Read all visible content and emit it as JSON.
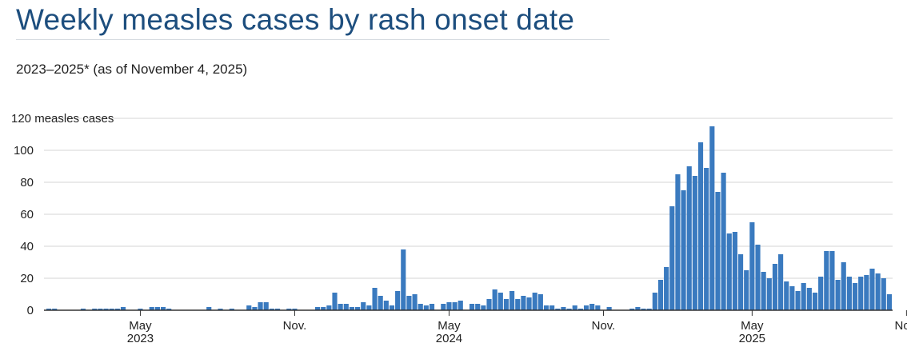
{
  "title": "Weekly measles cases by rash onset date",
  "subtitle": "2023–2025* (as of November 4, 2025)",
  "chart_data": {
    "type": "bar",
    "title": "Weekly measles cases by rash onset date",
    "subtitle": "2023–2025* (as of November 4, 2025)",
    "ylabel": "measles cases",
    "ylim": [
      0,
      120
    ],
    "yticks": [
      0,
      20,
      40,
      60,
      80,
      100,
      120
    ],
    "ytick_labels": [
      "0",
      "20",
      "40",
      "60",
      "80",
      "100",
      "120 measles cases"
    ],
    "xticks": [
      {
        "week": 16,
        "label": "May",
        "year": "2023"
      },
      {
        "week": 43,
        "label": "Nov.",
        "year": ""
      },
      {
        "week": 70,
        "label": "May",
        "year": "2024"
      },
      {
        "week": 97,
        "label": "Nov.",
        "year": ""
      },
      {
        "week": 123,
        "label": "May",
        "year": "2025"
      },
      {
        "week": 150,
        "label": "Nov.",
        "year": ""
      }
    ],
    "bar_color": "#3a7abf",
    "grid": true,
    "x": [
      "2023-W01",
      "2023-W02",
      "2023-W03",
      "2023-W04",
      "2023-W05",
      "2023-W06",
      "2023-W07",
      "2023-W08",
      "2023-W09",
      "2023-W10",
      "2023-W11",
      "2023-W12",
      "2023-W13",
      "2023-W14",
      "2023-W15",
      "2023-W16",
      "2023-W17",
      "2023-W18",
      "2023-W19",
      "2023-W20",
      "2023-W21",
      "2023-W22",
      "2023-W23",
      "2023-W24",
      "2023-W25",
      "2023-W26",
      "2023-W27",
      "2023-W28",
      "2023-W29",
      "2023-W30",
      "2023-W31",
      "2023-W32",
      "2023-W33",
      "2023-W34",
      "2023-W35",
      "2023-W36",
      "2023-W37",
      "2023-W38",
      "2023-W39",
      "2023-W40",
      "2023-W41",
      "2023-W42",
      "2023-W43",
      "2023-W44",
      "2023-W45",
      "2023-W46",
      "2023-W47",
      "2023-W48",
      "2023-W49",
      "2023-W50",
      "2023-W51",
      "2023-W52",
      "2024-W01",
      "2024-W02",
      "2024-W03",
      "2024-W04",
      "2024-W05",
      "2024-W06",
      "2024-W07",
      "2024-W08",
      "2024-W09",
      "2024-W10",
      "2024-W11",
      "2024-W12",
      "2024-W13",
      "2024-W14",
      "2024-W15",
      "2024-W16",
      "2024-W17",
      "2024-W18",
      "2024-W19",
      "2024-W20",
      "2024-W21",
      "2024-W22",
      "2024-W23",
      "2024-W24",
      "2024-W25",
      "2024-W26",
      "2024-W27",
      "2024-W28",
      "2024-W29",
      "2024-W30",
      "2024-W31",
      "2024-W32",
      "2024-W33",
      "2024-W34",
      "2024-W35",
      "2024-W36",
      "2024-W37",
      "2024-W38",
      "2024-W39",
      "2024-W40",
      "2024-W41",
      "2024-W42",
      "2024-W43",
      "2024-W44",
      "2024-W45",
      "2024-W46",
      "2024-W47",
      "2024-W48",
      "2024-W49",
      "2024-W50",
      "2024-W51",
      "2024-W52",
      "2025-W01",
      "2025-W02",
      "2025-W03",
      "2025-W04",
      "2025-W05",
      "2025-W06",
      "2025-W07",
      "2025-W08",
      "2025-W09",
      "2025-W10",
      "2025-W11",
      "2025-W12",
      "2025-W13",
      "2025-W14",
      "2025-W15",
      "2025-W16",
      "2025-W17",
      "2025-W18",
      "2025-W19",
      "2025-W20",
      "2025-W21",
      "2025-W22",
      "2025-W23",
      "2025-W24",
      "2025-W25",
      "2025-W26",
      "2025-W27",
      "2025-W28",
      "2025-W29",
      "2025-W30",
      "2025-W31",
      "2025-W32",
      "2025-W33",
      "2025-W34",
      "2025-W35",
      "2025-W36",
      "2025-W37",
      "2025-W38",
      "2025-W39",
      "2025-W40",
      "2025-W41",
      "2025-W42",
      "2025-W43",
      "2025-W44"
    ],
    "values": [
      1,
      1,
      0,
      0,
      0,
      0,
      1,
      0,
      1,
      1,
      1,
      1,
      1,
      2,
      0,
      0,
      1,
      0,
      2,
      2,
      2,
      1,
      0,
      0,
      0,
      0,
      0,
      0,
      2,
      0,
      1,
      0,
      1,
      0,
      0,
      3,
      2,
      5,
      5,
      1,
      1,
      0,
      1,
      1,
      0,
      0,
      0,
      2,
      2,
      3,
      11,
      4,
      4,
      2,
      2,
      5,
      3,
      14,
      9,
      6,
      3,
      12,
      38,
      9,
      10,
      4,
      3,
      4,
      0,
      4,
      5,
      5,
      6,
      0,
      4,
      4,
      3,
      7,
      13,
      11,
      7,
      12,
      7,
      9,
      8,
      11,
      10,
      3,
      3,
      1,
      2,
      1,
      3,
      1,
      3,
      4,
      3,
      0,
      2,
      0,
      0,
      0,
      1,
      2,
      1,
      1,
      11,
      19,
      27,
      65,
      85,
      75,
      90,
      84,
      105,
      89,
      115,
      74,
      86,
      48,
      49,
      35,
      25,
      55,
      41,
      24,
      20,
      29,
      35,
      18,
      15,
      12,
      17,
      14,
      11,
      21,
      37,
      37,
      19,
      30,
      21,
      17,
      21,
      22,
      26,
      23,
      20,
      10
    ]
  }
}
